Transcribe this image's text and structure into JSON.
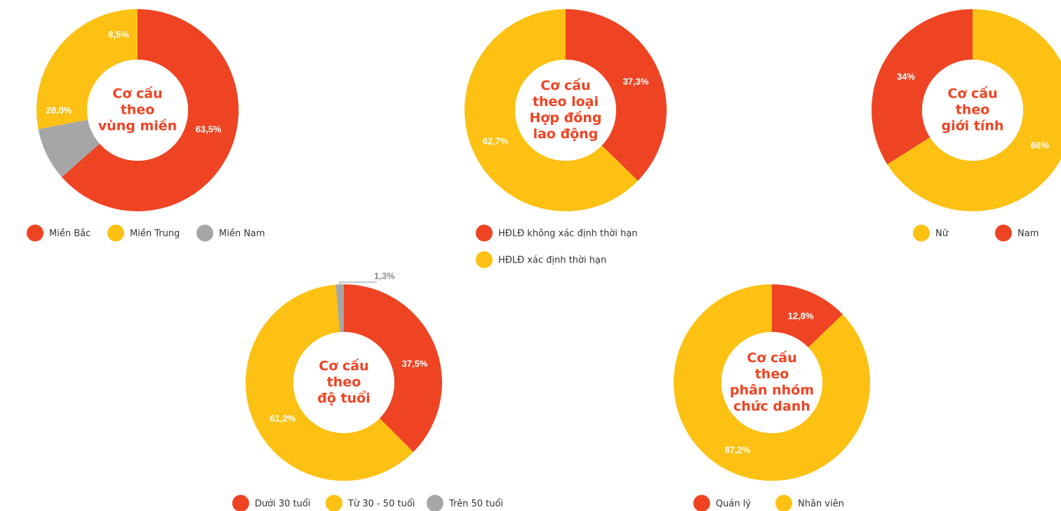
{
  "colors": {
    "red": "#ee4423",
    "yellow": "#fdc113",
    "grey": "#a6a6a6"
  },
  "chart_data": [
    {
      "type": "pie",
      "title": [
        "Cơ cấu",
        "theo",
        "vùng miền"
      ],
      "series": [
        {
          "name": "Miền Bắc",
          "value": 63.5,
          "label": "63,5%",
          "color": "#ee4423"
        },
        {
          "name": "Miền Trung",
          "value": 28.0,
          "label": "28,0%",
          "color": "#fdc113"
        },
        {
          "name": "Miền Nam",
          "value": 8.5,
          "label": "8,5%",
          "color": "#a6a6a6"
        }
      ],
      "legend": "bottom"
    },
    {
      "type": "pie",
      "title": [
        "Cơ cấu",
        "theo loại",
        "Hợp đồng",
        "lao động"
      ],
      "series": [
        {
          "name": "HĐLĐ không xác định thời hạn",
          "value": 37.3,
          "label": "37,3%",
          "color": "#ee4423"
        },
        {
          "name": "HĐLĐ xác định thời hạn",
          "value": 62.7,
          "label": "62,7%",
          "color": "#fdc113"
        }
      ],
      "legend": "bottom"
    },
    {
      "type": "pie",
      "title": [
        "Cơ cấu",
        "theo",
        "giới tính"
      ],
      "series": [
        {
          "name": "Nữ",
          "value": 66,
          "label": "66%",
          "color": "#fdc113"
        },
        {
          "name": "Nam",
          "value": 34,
          "label": "34%",
          "color": "#ee4423"
        }
      ],
      "legend": "bottom"
    },
    {
      "type": "pie",
      "title": [
        "Cơ cấu",
        "theo",
        "độ tuổi"
      ],
      "series": [
        {
          "name": "Dưới 30 tuổi",
          "value": 37.5,
          "label": "37,5%",
          "color": "#ee4423"
        },
        {
          "name": "Từ 30 - 50 tuổi",
          "value": 61.2,
          "label": "61,2%",
          "color": "#fdc113"
        },
        {
          "name": "Trên 50 tuổi",
          "value": 1.3,
          "label": "1,3%",
          "color": "#a6a6a6"
        }
      ],
      "legend": "bottom"
    },
    {
      "type": "pie",
      "title": [
        "Cơ cấu",
        "theo",
        "phân nhóm",
        "chức danh"
      ],
      "series": [
        {
          "name": "Quản lý",
          "value": 12.8,
          "label": "12,8%",
          "color": "#ee4423"
        },
        {
          "name": "Nhân viên",
          "value": 87.2,
          "label": "87,2%",
          "color": "#fdc113"
        }
      ],
      "legend": "bottom"
    }
  ]
}
